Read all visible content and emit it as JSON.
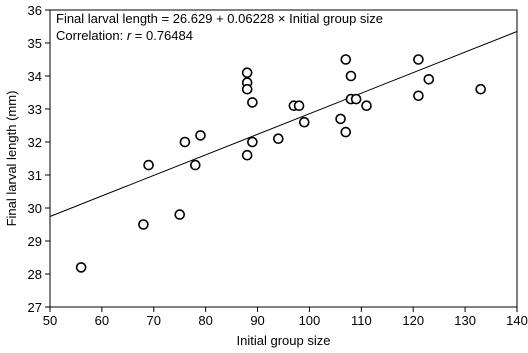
{
  "chart_data": {
    "type": "scatter",
    "title": "",
    "xlabel": "Initial group size",
    "ylabel": "Final larval length (mm)",
    "xlim": [
      50,
      140
    ],
    "ylim": [
      27,
      36
    ],
    "x_ticks": [
      50,
      60,
      70,
      80,
      90,
      100,
      110,
      120,
      130,
      140
    ],
    "y_ticks": [
      27,
      28,
      29,
      30,
      31,
      32,
      33,
      34,
      35,
      36
    ],
    "grid": false,
    "annotations": {
      "equation": "Final larval length = 26.629 + 0.06228 × Initial group size",
      "correlation_prefix": "Correlation: ",
      "correlation_symbol": "r",
      "correlation_value": " = 0.76484"
    },
    "regression": {
      "intercept": 26.629,
      "slope": 0.06228
    },
    "series": [
      {
        "marker": "open-circle",
        "points": [
          [
            56,
            28.2
          ],
          [
            68,
            29.5
          ],
          [
            69,
            31.3
          ],
          [
            75,
            29.8
          ],
          [
            76,
            32.0
          ],
          [
            78,
            31.3
          ],
          [
            79,
            32.2
          ],
          [
            88,
            34.1
          ],
          [
            88,
            33.8
          ],
          [
            88,
            33.6
          ],
          [
            88,
            31.6
          ],
          [
            89,
            33.2
          ],
          [
            89,
            32.0
          ],
          [
            94,
            32.1
          ],
          [
            97,
            33.1
          ],
          [
            98,
            33.1
          ],
          [
            99,
            32.6
          ],
          [
            106,
            32.7
          ],
          [
            107,
            34.5
          ],
          [
            107,
            32.3
          ],
          [
            108,
            34.0
          ],
          [
            108,
            33.3
          ],
          [
            109,
            33.3
          ],
          [
            111,
            33.1
          ],
          [
            121,
            34.5
          ],
          [
            121,
            33.4
          ],
          [
            123,
            33.9
          ],
          [
            133,
            33.6
          ]
        ]
      }
    ]
  }
}
